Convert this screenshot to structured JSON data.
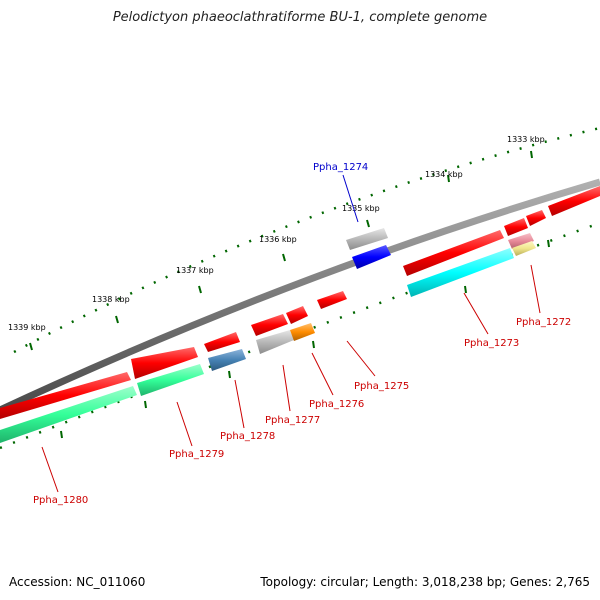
{
  "title": "Pelodictyon phaeoclathratiforme BU-1, complete genome",
  "footer": {
    "accession": "Accession: NC_011060",
    "summary": "Topology: circular; Length: 3,018,238 bp; Genes: 2,765"
  },
  "colors": {
    "backbone": "#7a7a7a",
    "cds_forward": "#ff0000",
    "cds_reverse": "#00ffff",
    "cds_green": "#33ff99",
    "cds_gray": "#b8b8b8",
    "cds_blue": "#0000ff",
    "cds_steelblue": "#4682b4",
    "cds_orange": "#ff8c00",
    "cds_pink": "#e88a99",
    "cds_yellow": "#f0e68c",
    "label_highlight": "#0000cc",
    "label_default": "#cc0000",
    "ticks": "#006600"
  },
  "outer_scale": {
    "labels": [
      "1333 kbp",
      "1334 kbp",
      "1335 kbp",
      "1336 kbp",
      "1337 kbp",
      "1338 kbp",
      "1339 kbp"
    ]
  },
  "gene_labels": [
    "Ppha_1274",
    "Ppha_1272",
    "Ppha_1273",
    "Ppha_1275",
    "Ppha_1276",
    "Ppha_1277",
    "Ppha_1278",
    "Ppha_1279",
    "Ppha_1280"
  ]
}
